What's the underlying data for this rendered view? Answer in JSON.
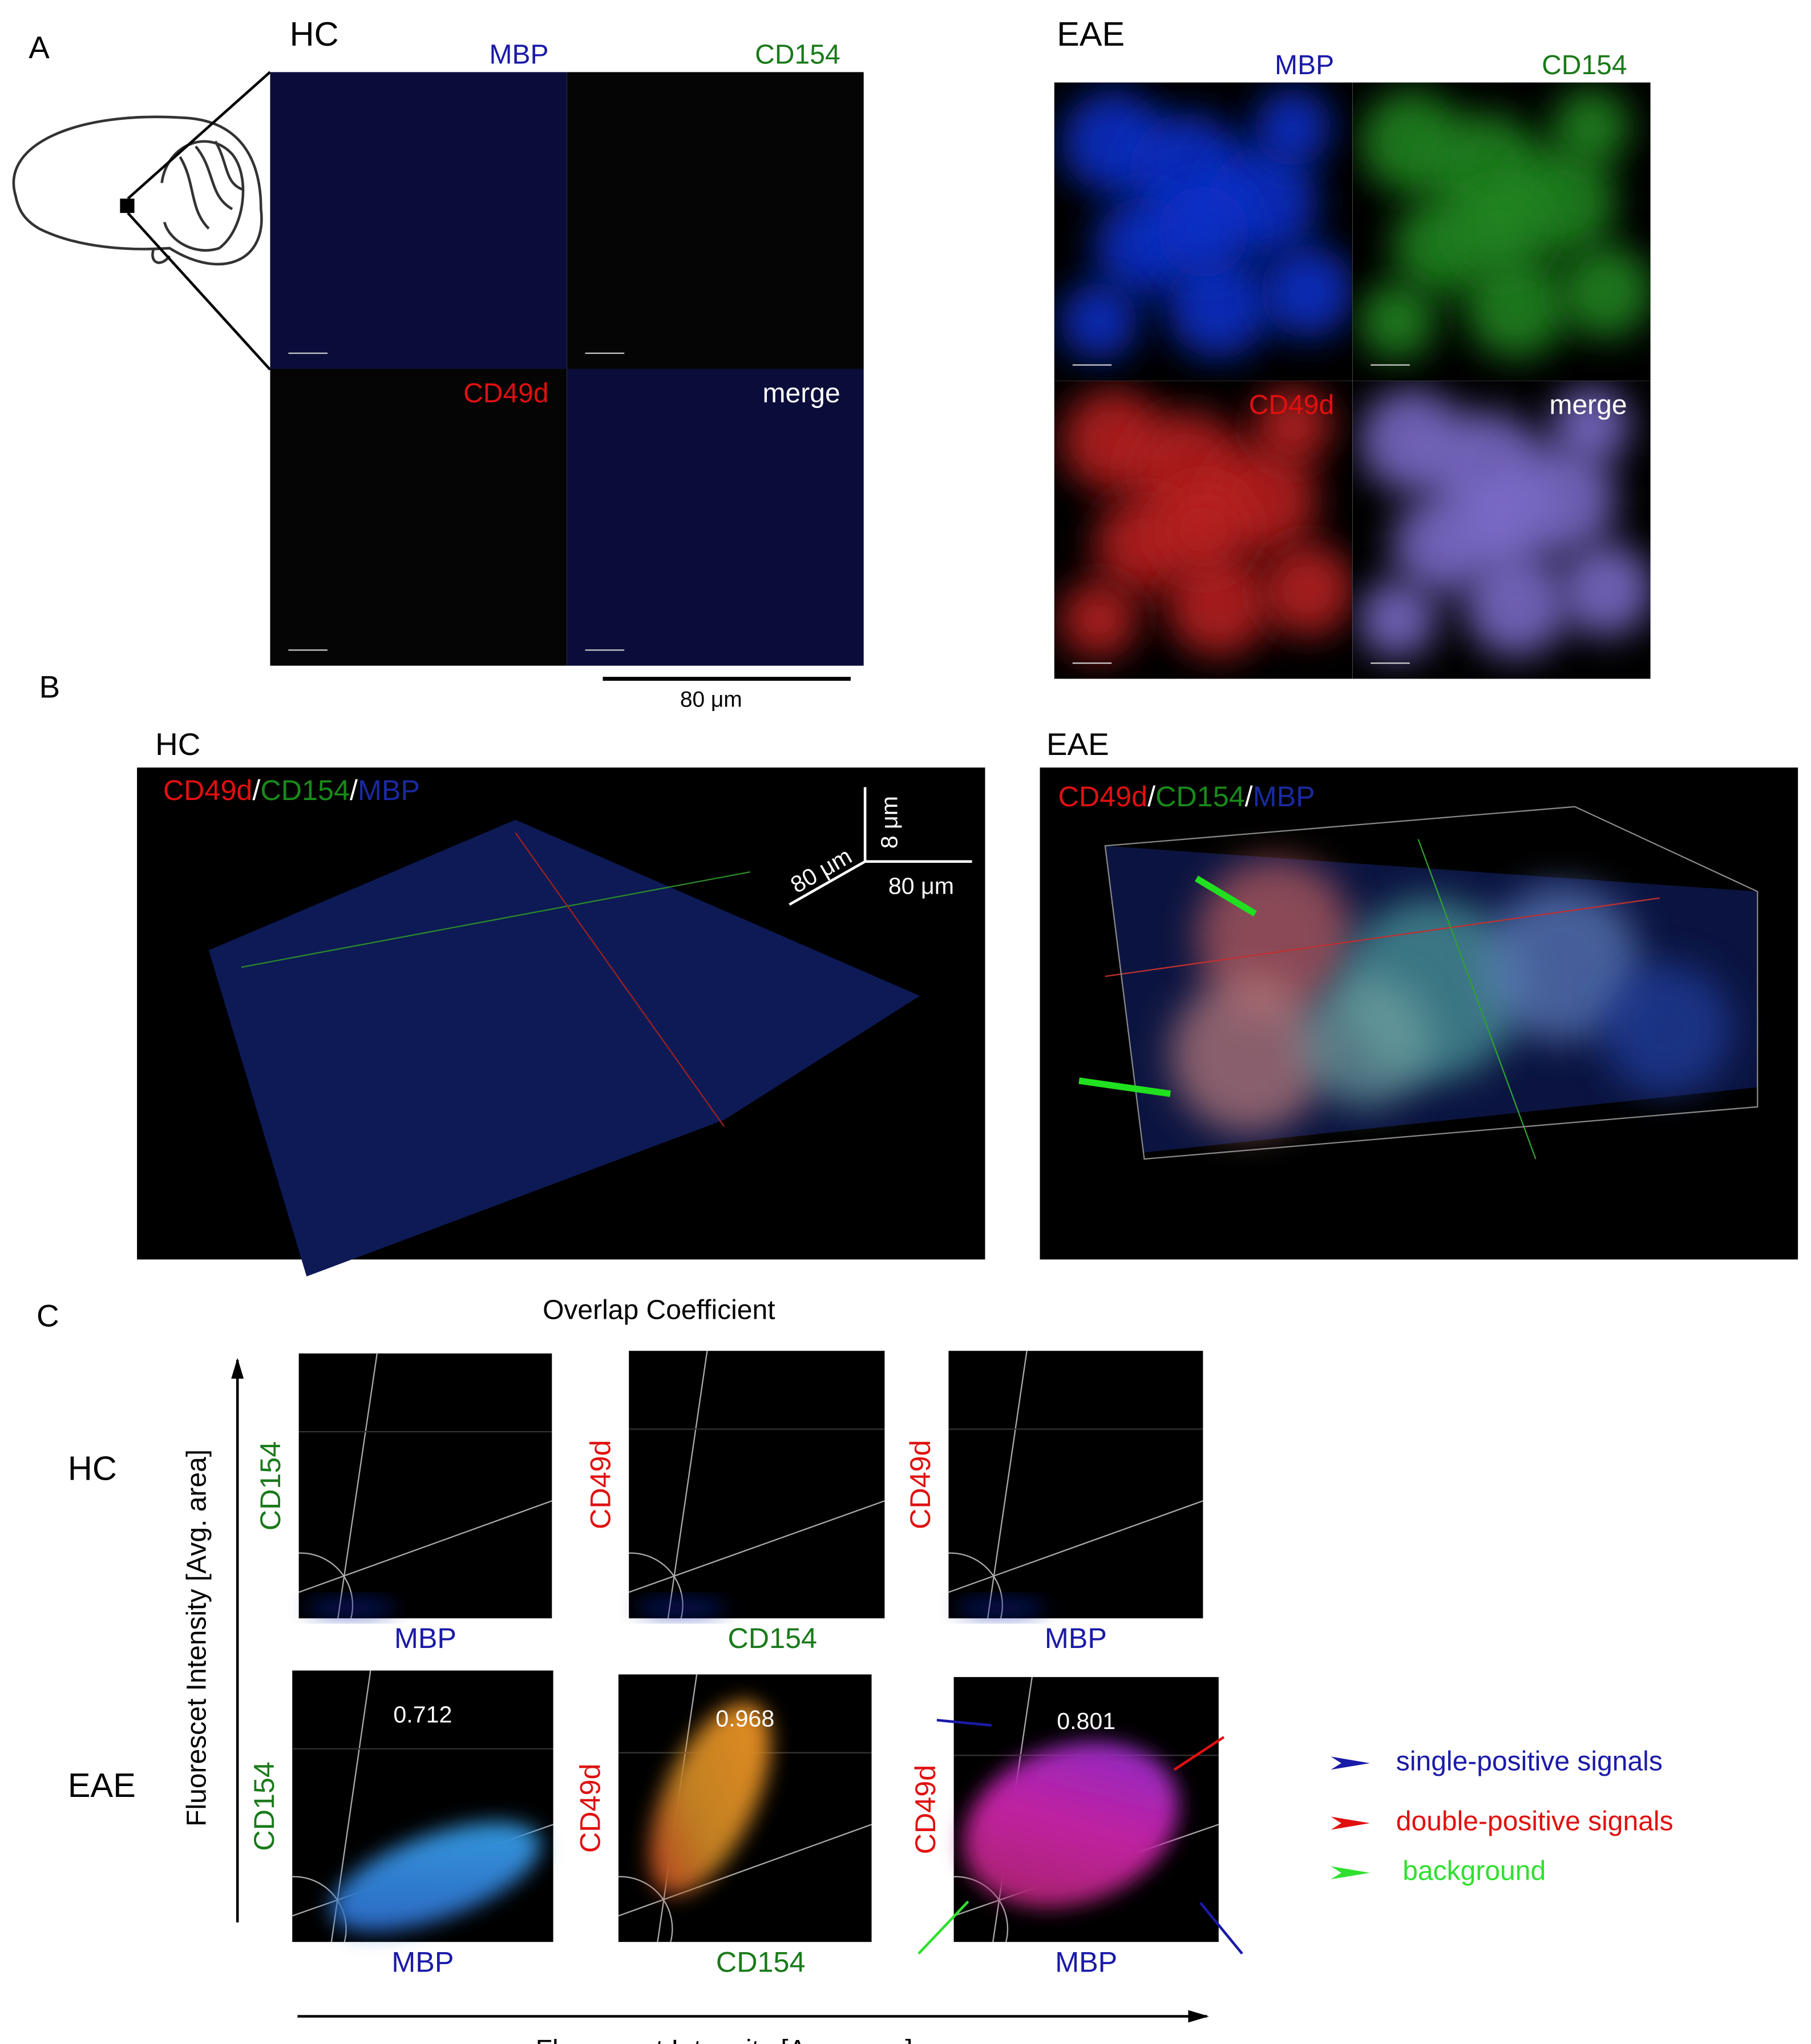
{
  "panel_a": {
    "label": "A",
    "hc": {
      "title": "HC",
      "channels": [
        "MBP",
        "CD154",
        "CD49d",
        "merge"
      ]
    },
    "eae": {
      "title": "EAE",
      "channels": [
        "MBP",
        "CD154",
        "CD49d",
        "merge"
      ]
    },
    "scale_bar": "80 μm"
  },
  "panel_b": {
    "label": "B",
    "hc": {
      "title": "HC",
      "stain": [
        "CD49d",
        "/",
        "CD154",
        "/",
        "MBP"
      ]
    },
    "eae": {
      "title": "EAE",
      "stain": [
        "CD49d",
        "/",
        "CD154",
        "/",
        "MBP"
      ]
    },
    "scale": [
      "80 μm",
      "8 μm",
      "80 μm"
    ]
  },
  "panel_c": {
    "label": "C",
    "title": "Overlap Coefficient",
    "y_axis": "Fluorescet Intensity [Avg. area]",
    "x_axis": "Fluorescet Intensity [Avg. area]",
    "rows": [
      "HC",
      "EAE"
    ],
    "plots": [
      {
        "y": "CD154",
        "x": "MBP"
      },
      {
        "y": "CD49d",
        "x": "CD154"
      },
      {
        "y": "CD49d",
        "x": "MBP"
      }
    ],
    "coefficients": [
      0.712,
      0.968,
      0.801
    ],
    "legend": [
      "single-positive signals",
      "double-positive signals",
      "background"
    ]
  }
}
